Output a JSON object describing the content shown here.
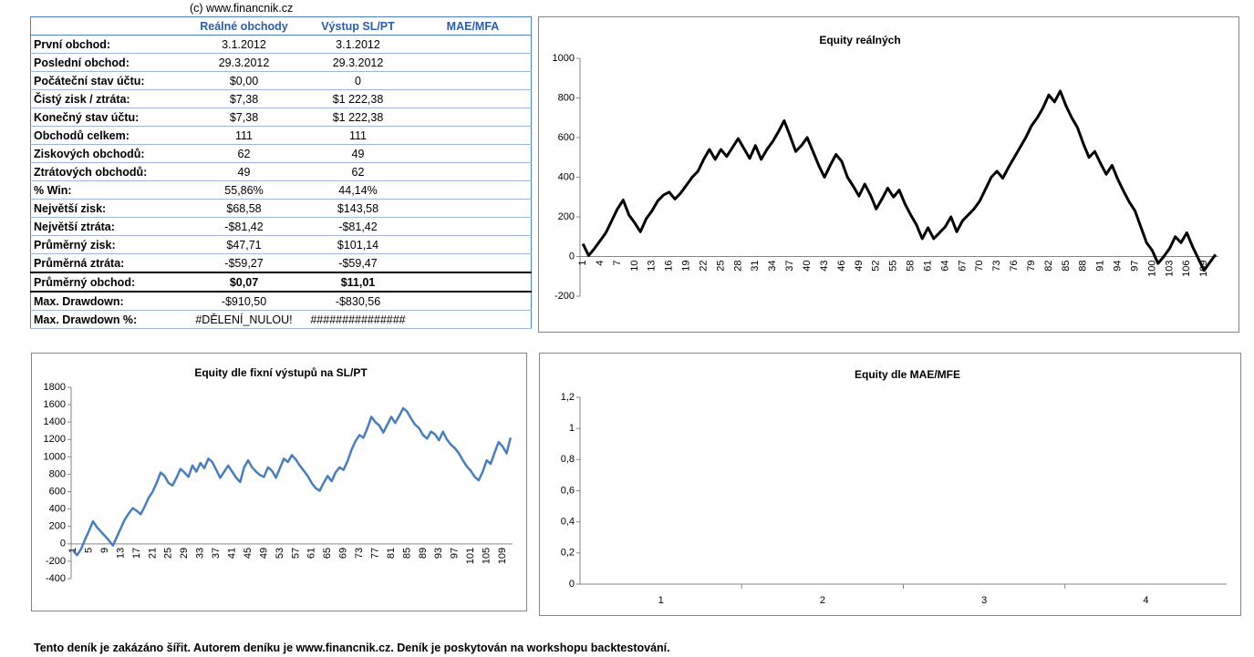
{
  "header": {
    "copyright": "(c) www.financnik.cz"
  },
  "table": {
    "columns": [
      "Reálné obchody",
      "Výstup SL/PT",
      "MAE/MFA"
    ],
    "rows": [
      [
        "První obchod:",
        "3.1.2012",
        "3.1.2012"
      ],
      [
        "Poslední obchod:",
        "29.3.2012",
        "29.3.2012"
      ],
      [
        "Počáteční stav účtu:",
        "$0,00",
        "0"
      ],
      [
        "Čistý zisk / ztráta:",
        "$7,38",
        "$1 222,38"
      ],
      [
        "Konečný stav účtu:",
        "$7,38",
        "$1 222,38"
      ],
      [
        "Obchodů celkem:",
        "111",
        "111"
      ],
      [
        "Ziskových obchodů:",
        "62",
        "49"
      ],
      [
        "Ztrátových obchodů:",
        "49",
        "62"
      ],
      [
        "% Win:",
        "55,86%",
        "44,14%"
      ],
      [
        "Největší zisk:",
        "$68,58",
        "$143,58"
      ],
      [
        "Největší ztráta:",
        "-$81,42",
        "-$81,42"
      ],
      [
        "Průměrný zisk:",
        "$47,71",
        "$101,14"
      ],
      [
        "Průměrná ztráta:",
        "-$59,27",
        "-$59,47"
      ],
      [
        "Průměrný obchod:",
        "$0,07",
        "$11,01"
      ],
      [
        "Max. Drawdown:",
        "-$910,50",
        "-$830,56"
      ],
      [
        "Max. Drawdown %:",
        "#DĚLENÍ_NULOU!",
        "###############"
      ]
    ]
  },
  "chart_data": [
    {
      "type": "line",
      "title": "Equity reálných",
      "categories": [
        1,
        null,
        null,
        4,
        null,
        null,
        7,
        null,
        null,
        10,
        null,
        null,
        13,
        null,
        null,
        16,
        null,
        null,
        19,
        null,
        null,
        22,
        null,
        null,
        25,
        null,
        null,
        28,
        null,
        null,
        31,
        null,
        null,
        34,
        null,
        null,
        37,
        null,
        null,
        40,
        null,
        null,
        43,
        null,
        null,
        46,
        null,
        null,
        49,
        null,
        null,
        52,
        null,
        null,
        55,
        null,
        null,
        58,
        null,
        null,
        61,
        null,
        null,
        64,
        null,
        null,
        67,
        null,
        null,
        70,
        null,
        null,
        73,
        null,
        null,
        76,
        null,
        null,
        79,
        null,
        null,
        82,
        null,
        null,
        85,
        null,
        null,
        88,
        null,
        null,
        91,
        null,
        null,
        94,
        null,
        null,
        97,
        null,
        null,
        100,
        null,
        null,
        103,
        null,
        null,
        106,
        null,
        null,
        109,
        null,
        null
      ],
      "series": [
        {
          "color": "#000000",
          "values": [
            64,
            5,
            40,
            80,
            120,
            180,
            240,
            285,
            210,
            170,
            125,
            190,
            230,
            280,
            310,
            325,
            290,
            320,
            360,
            400,
            430,
            490,
            540,
            490,
            540,
            505,
            550,
            595,
            545,
            495,
            560,
            490,
            540,
            580,
            630,
            685,
            610,
            530,
            560,
            600,
            530,
            460,
            400,
            460,
            515,
            480,
            400,
            355,
            305,
            365,
            310,
            240,
            290,
            345,
            300,
            335,
            265,
            210,
            160,
            90,
            145,
            90,
            120,
            150,
            200,
            125,
            180,
            210,
            240,
            280,
            340,
            400,
            430,
            395,
            450,
            500,
            550,
            600,
            660,
            700,
            750,
            815,
            780,
            835,
            760,
            700,
            650,
            570,
            500,
            530,
            470,
            415,
            460,
            390,
            330,
            275,
            230,
            150,
            70,
            30,
            -35,
            0,
            40,
            100,
            70,
            120,
            50,
            -10,
            -70,
            -30,
            10
          ]
        }
      ],
      "ylim": [
        -200,
        1000
      ],
      "yticks": [
        -200,
        0,
        200,
        400,
        600,
        800,
        1000
      ],
      "grid": false
    },
    {
      "type": "line",
      "title": "Equity dle fixní výstupů na SL/PT",
      "categories": [
        1,
        null,
        null,
        null,
        5,
        null,
        null,
        null,
        9,
        null,
        null,
        null,
        13,
        null,
        null,
        null,
        17,
        null,
        null,
        null,
        21,
        null,
        null,
        null,
        25,
        null,
        null,
        null,
        29,
        null,
        null,
        null,
        33,
        null,
        null,
        null,
        37,
        null,
        null,
        null,
        41,
        null,
        null,
        null,
        45,
        null,
        null,
        null,
        49,
        null,
        null,
        null,
        53,
        null,
        null,
        null,
        57,
        null,
        null,
        null,
        61,
        null,
        null,
        null,
        65,
        null,
        null,
        null,
        69,
        null,
        null,
        null,
        73,
        null,
        null,
        null,
        77,
        null,
        null,
        null,
        81,
        null,
        null,
        null,
        85,
        null,
        null,
        null,
        89,
        null,
        null,
        null,
        93,
        null,
        null,
        null,
        97,
        null,
        null,
        null,
        101,
        null,
        null,
        null,
        105,
        null,
        null,
        null,
        109,
        null,
        null
      ],
      "series": [
        {
          "color": "#4a7ebb",
          "values": [
            -80,
            -130,
            -60,
            50,
            150,
            260,
            190,
            140,
            90,
            40,
            -20,
            80,
            180,
            280,
            350,
            410,
            380,
            340,
            430,
            530,
            600,
            700,
            820,
            780,
            700,
            670,
            760,
            860,
            820,
            770,
            900,
            830,
            930,
            870,
            980,
            940,
            850,
            760,
            830,
            900,
            830,
            760,
            710,
            880,
            960,
            880,
            830,
            790,
            770,
            880,
            840,
            760,
            870,
            980,
            940,
            1020,
            970,
            900,
            840,
            780,
            700,
            640,
            610,
            700,
            780,
            720,
            820,
            880,
            850,
            950,
            1080,
            1180,
            1250,
            1220,
            1330,
            1460,
            1400,
            1360,
            1280,
            1370,
            1460,
            1390,
            1470,
            1560,
            1520,
            1440,
            1370,
            1330,
            1250,
            1210,
            1290,
            1260,
            1190,
            1290,
            1200,
            1140,
            1100,
            1040,
            960,
            890,
            840,
            770,
            730,
            830,
            960,
            920,
            1050,
            1170,
            1120,
            1040,
            1220
          ]
        }
      ],
      "ylim": [
        -400,
        1800
      ],
      "yticks": [
        -400,
        -200,
        0,
        200,
        400,
        600,
        800,
        1000,
        1200,
        1400,
        1600,
        1800
      ],
      "grid": false
    },
    {
      "type": "line",
      "title": "Equity dle MAE/MFE",
      "categories": [
        1,
        2,
        3,
        4
      ],
      "ylim": [
        0,
        1.2
      ],
      "yticks": [
        0,
        {
          "value": 0.2,
          "label": "0,2"
        },
        {
          "value": 0.4,
          "label": "0,4"
        },
        {
          "value": 0.6,
          "label": "0,6"
        },
        {
          "value": 0.8,
          "label": "0,8"
        },
        1,
        {
          "value": 1.2,
          "label": "1,2"
        }
      ],
      "grid": false
    }
  ],
  "footer": "Tento deník je zakázáno šířit. Autorem deníku je www.financnik.cz. Deník je poskytován na workshopu backtestování."
}
